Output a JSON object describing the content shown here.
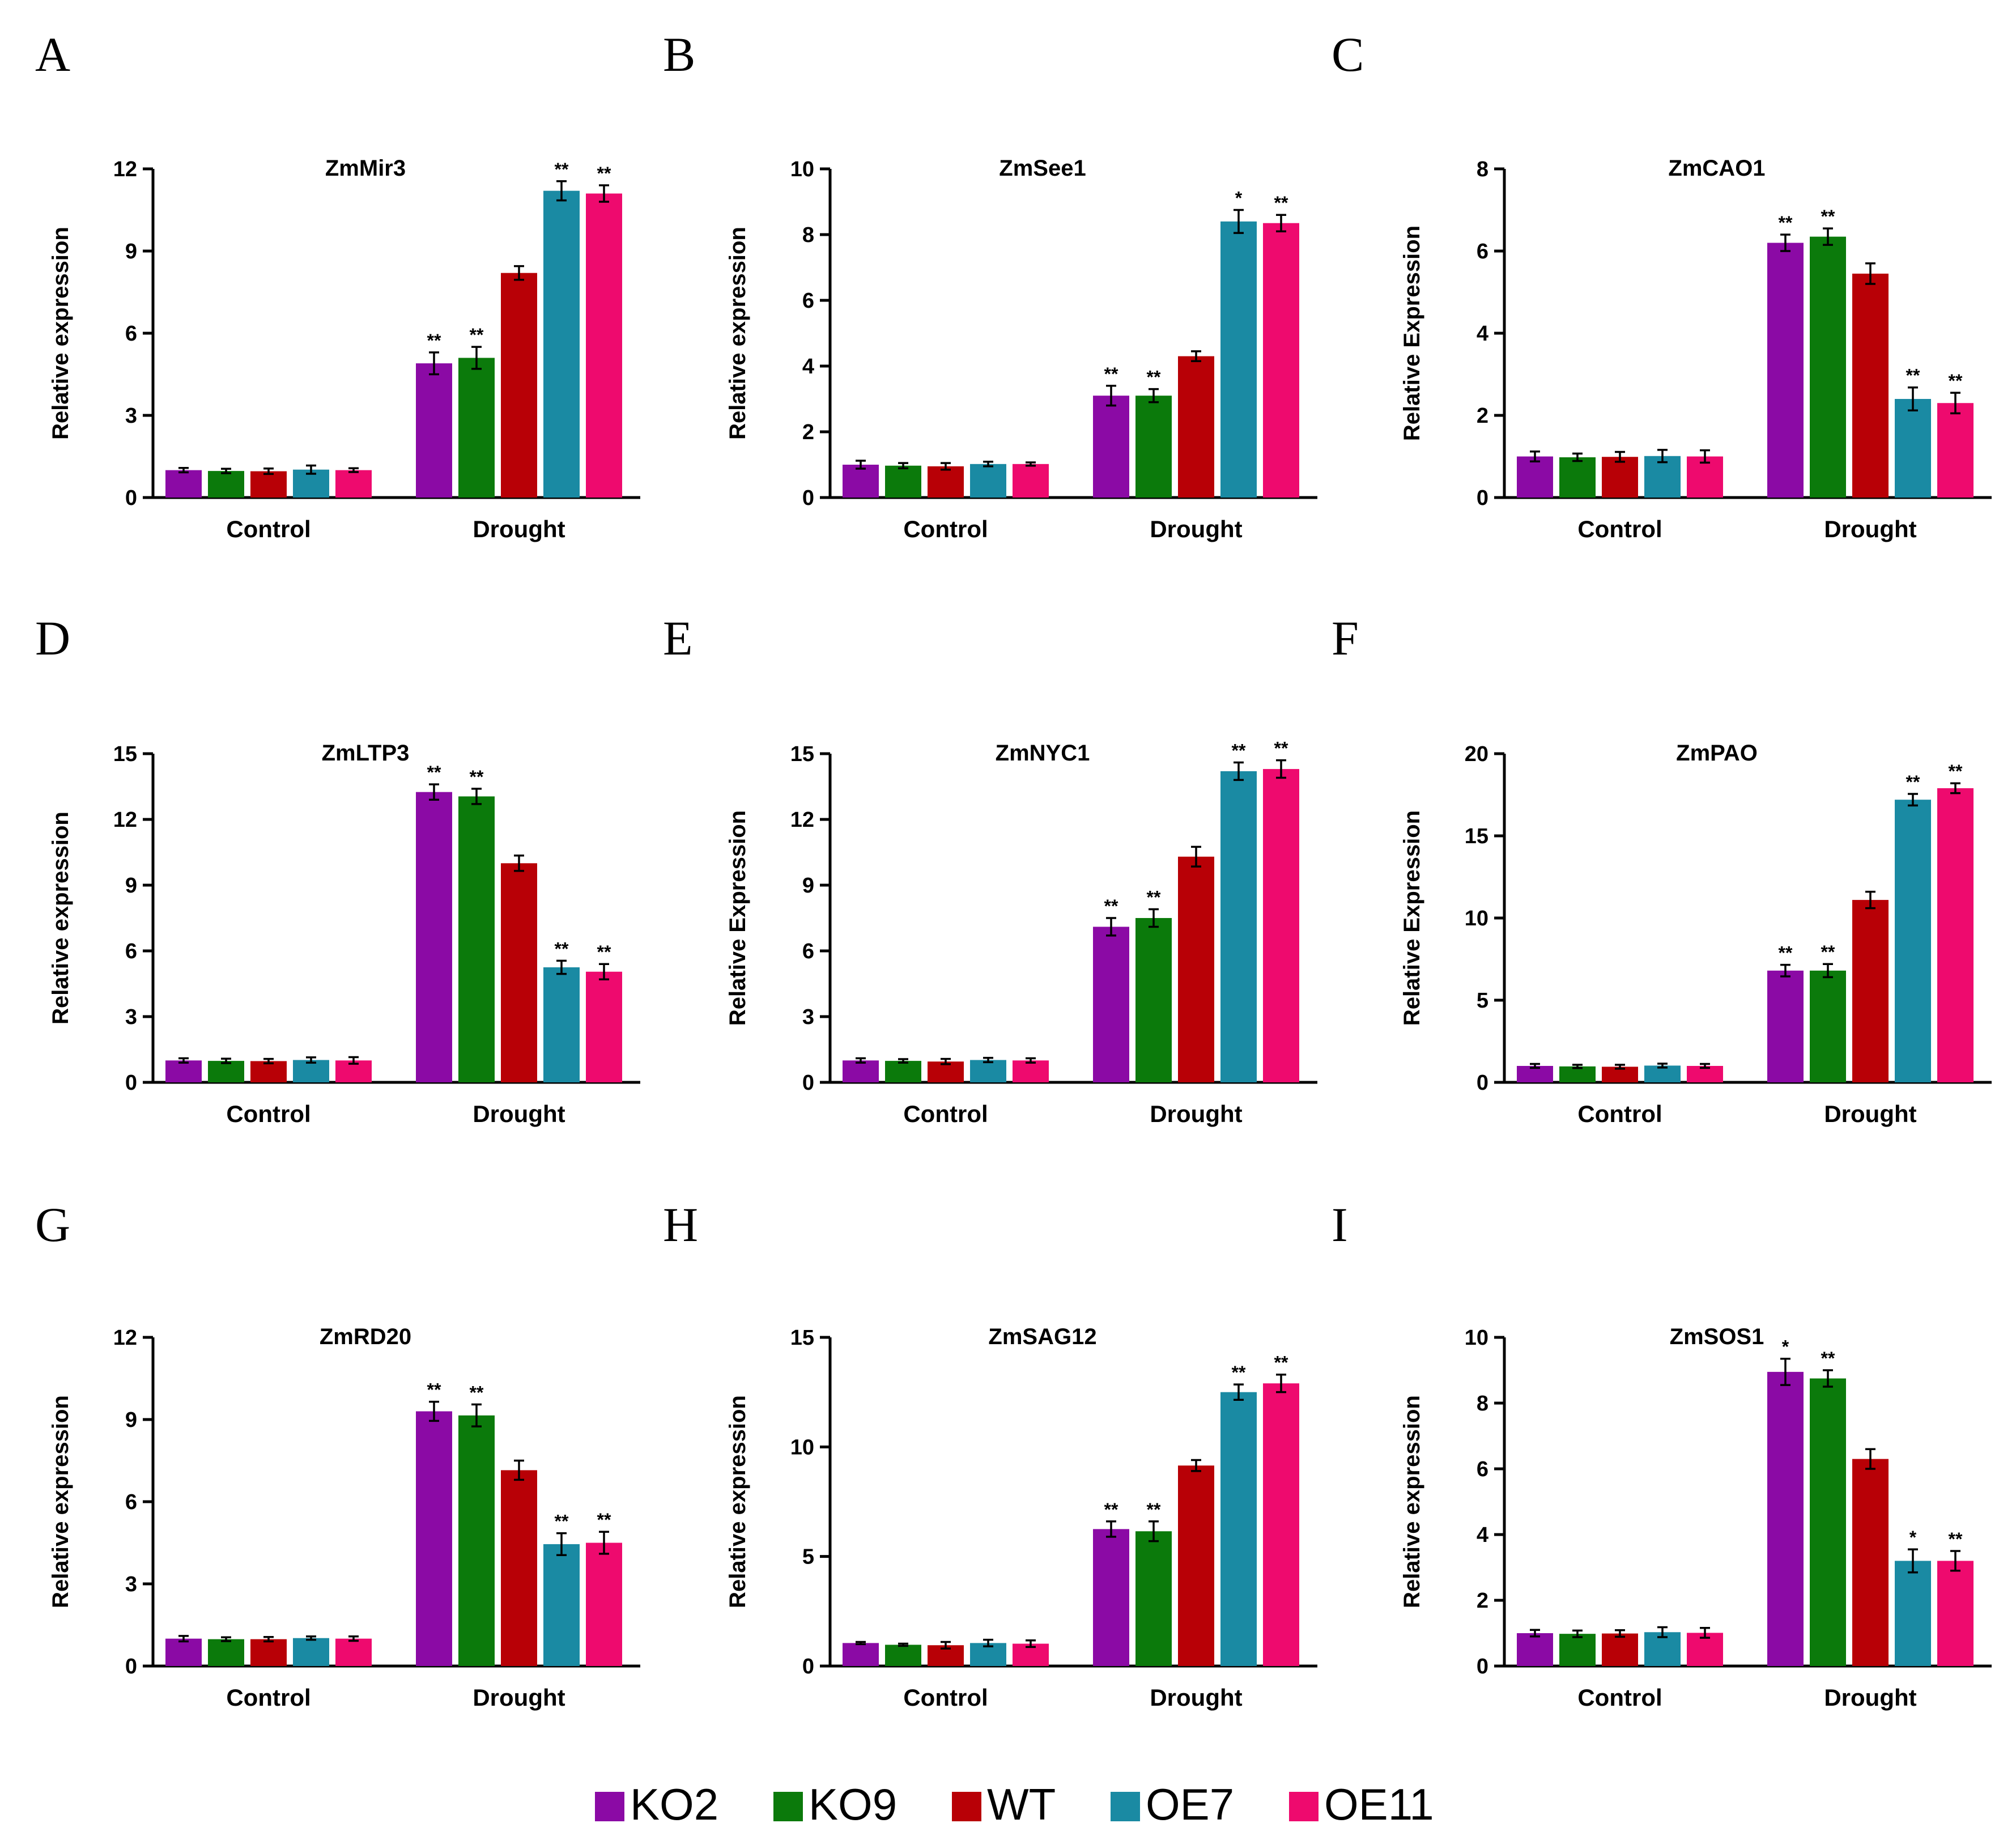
{
  "colors": {
    "KO2": "#8b0aa5",
    "KO9": "#0b7a0b",
    "WT": "#b80006",
    "OE7": "#1a8aa3",
    "OE11": "#ee0a6e"
  },
  "legend": [
    {
      "name": "KO2",
      "color": "#8b0aa5"
    },
    {
      "name": "KO9",
      "color": "#0b7a0b"
    },
    {
      "name": "WT",
      "color": "#b80006"
    },
    {
      "name": "OE7",
      "color": "#1a8aa3"
    },
    {
      "name": "OE11",
      "color": "#ee0a6e"
    }
  ],
  "chart_data": [
    {
      "panel": "A",
      "type": "bar",
      "title": "ZmMir3",
      "ylabel": "Relative expression",
      "categories": [
        "Control",
        "Drought"
      ],
      "ylim": [
        0,
        12
      ],
      "yticks": [
        "0",
        "3",
        "6",
        "9",
        "12"
      ],
      "series": [
        {
          "name": "KO2",
          "values": [
            1.0,
            4.9
          ],
          "errors": [
            0.08,
            0.4
          ],
          "sig": [
            "",
            "**"
          ]
        },
        {
          "name": "KO9",
          "values": [
            0.97,
            5.1
          ],
          "errors": [
            0.08,
            0.4
          ],
          "sig": [
            "",
            "**"
          ]
        },
        {
          "name": "WT",
          "values": [
            0.96,
            8.2
          ],
          "errors": [
            0.1,
            0.25
          ],
          "sig": [
            "",
            ""
          ]
        },
        {
          "name": "OE7",
          "values": [
            1.02,
            11.2
          ],
          "errors": [
            0.15,
            0.35
          ],
          "sig": [
            "",
            "**"
          ]
        },
        {
          "name": "OE11",
          "values": [
            1.0,
            11.1
          ],
          "errors": [
            0.07,
            0.3
          ],
          "sig": [
            "",
            "**"
          ]
        }
      ]
    },
    {
      "panel": "B",
      "type": "bar",
      "title": "ZmSee1",
      "ylabel": "Relative expression",
      "categories": [
        "Control",
        "Drought"
      ],
      "ylim": [
        0,
        10
      ],
      "yticks": [
        "0",
        "2",
        "4",
        "6",
        "8",
        "10"
      ],
      "series": [
        {
          "name": "KO2",
          "values": [
            1.0,
            3.1
          ],
          "errors": [
            0.12,
            0.3
          ],
          "sig": [
            "",
            "**"
          ]
        },
        {
          "name": "KO9",
          "values": [
            0.97,
            3.1
          ],
          "errors": [
            0.08,
            0.2
          ],
          "sig": [
            "",
            "**"
          ]
        },
        {
          "name": "WT",
          "values": [
            0.95,
            4.3
          ],
          "errors": [
            0.1,
            0.15
          ],
          "sig": [
            "",
            ""
          ]
        },
        {
          "name": "OE7",
          "values": [
            1.02,
            8.4
          ],
          "errors": [
            0.07,
            0.35
          ],
          "sig": [
            "",
            "*"
          ]
        },
        {
          "name": "OE11",
          "values": [
            1.02,
            8.35
          ],
          "errors": [
            0.05,
            0.25
          ],
          "sig": [
            "",
            "**"
          ]
        }
      ]
    },
    {
      "panel": "C",
      "type": "bar",
      "title": "ZmCAO1",
      "ylabel": "Relative Expression",
      "categories": [
        "Control",
        "Drought"
      ],
      "ylim": [
        0,
        8
      ],
      "yticks": [
        "0",
        "2",
        "4",
        "6",
        "8"
      ],
      "series": [
        {
          "name": "KO2",
          "values": [
            1.0,
            6.2
          ],
          "errors": [
            0.12,
            0.2
          ],
          "sig": [
            "",
            "**"
          ]
        },
        {
          "name": "KO9",
          "values": [
            0.98,
            6.35
          ],
          "errors": [
            0.09,
            0.2
          ],
          "sig": [
            "",
            "**"
          ]
        },
        {
          "name": "WT",
          "values": [
            0.99,
            5.45
          ],
          "errors": [
            0.12,
            0.25
          ],
          "sig": [
            "",
            ""
          ]
        },
        {
          "name": "OE7",
          "values": [
            1.01,
            2.4
          ],
          "errors": [
            0.15,
            0.28
          ],
          "sig": [
            "",
            "**"
          ]
        },
        {
          "name": "OE11",
          "values": [
            1.0,
            2.3
          ],
          "errors": [
            0.15,
            0.25
          ],
          "sig": [
            "",
            "**"
          ]
        }
      ]
    },
    {
      "panel": "D",
      "type": "bar",
      "title": "ZmLTP3",
      "ylabel": "Relative expression",
      "categories": [
        "Control",
        "Drought"
      ],
      "ylim": [
        0,
        15
      ],
      "yticks": [
        "0",
        "3",
        "6",
        "9",
        "12",
        "15"
      ],
      "series": [
        {
          "name": "KO2",
          "values": [
            1.0,
            13.25
          ],
          "errors": [
            0.1,
            0.35
          ],
          "sig": [
            "",
            "**"
          ]
        },
        {
          "name": "KO9",
          "values": [
            0.98,
            13.05
          ],
          "errors": [
            0.1,
            0.35
          ],
          "sig": [
            "",
            "**"
          ]
        },
        {
          "name": "WT",
          "values": [
            0.97,
            10.0
          ],
          "errors": [
            0.1,
            0.35
          ],
          "sig": [
            "",
            ""
          ]
        },
        {
          "name": "OE7",
          "values": [
            1.02,
            5.25
          ],
          "errors": [
            0.12,
            0.3
          ],
          "sig": [
            "",
            "**"
          ]
        },
        {
          "name": "OE11",
          "values": [
            1.0,
            5.05
          ],
          "errors": [
            0.15,
            0.35
          ],
          "sig": [
            "",
            "**"
          ]
        }
      ]
    },
    {
      "panel": "E",
      "type": "bar",
      "title": "ZmNYC1",
      "ylabel": "Relative Expression",
      "categories": [
        "Control",
        "Drought"
      ],
      "ylim": [
        0,
        15
      ],
      "yticks": [
        "0",
        "3",
        "6",
        "9",
        "12",
        "15"
      ],
      "series": [
        {
          "name": "KO2",
          "values": [
            1.0,
            7.1
          ],
          "errors": [
            0.1,
            0.4
          ],
          "sig": [
            "",
            "**"
          ]
        },
        {
          "name": "KO9",
          "values": [
            0.98,
            7.5
          ],
          "errors": [
            0.08,
            0.4
          ],
          "sig": [
            "",
            "**"
          ]
        },
        {
          "name": "WT",
          "values": [
            0.95,
            10.3
          ],
          "errors": [
            0.12,
            0.45
          ],
          "sig": [
            "",
            ""
          ]
        },
        {
          "name": "OE7",
          "values": [
            1.02,
            14.2
          ],
          "errors": [
            0.1,
            0.4
          ],
          "sig": [
            "",
            "**"
          ]
        },
        {
          "name": "OE11",
          "values": [
            1.0,
            14.3
          ],
          "errors": [
            0.1,
            0.4
          ],
          "sig": [
            "",
            "**"
          ]
        }
      ]
    },
    {
      "panel": "F",
      "type": "bar",
      "title": "ZmPAO",
      "ylabel": "Relative Expression",
      "categories": [
        "Control",
        "Drought"
      ],
      "ylim": [
        0,
        20
      ],
      "yticks": [
        "0",
        "5",
        "10",
        "15",
        "20"
      ],
      "series": [
        {
          "name": "KO2",
          "values": [
            1.0,
            6.8
          ],
          "errors": [
            0.12,
            0.35
          ],
          "sig": [
            "",
            "**"
          ]
        },
        {
          "name": "KO9",
          "values": [
            0.97,
            6.8
          ],
          "errors": [
            0.1,
            0.4
          ],
          "sig": [
            "",
            "**"
          ]
        },
        {
          "name": "WT",
          "values": [
            0.95,
            11.1
          ],
          "errors": [
            0.12,
            0.5
          ],
          "sig": [
            "",
            ""
          ]
        },
        {
          "name": "OE7",
          "values": [
            1.02,
            17.2
          ],
          "errors": [
            0.12,
            0.35
          ],
          "sig": [
            "",
            "**"
          ]
        },
        {
          "name": "OE11",
          "values": [
            1.0,
            17.9
          ],
          "errors": [
            0.12,
            0.3
          ],
          "sig": [
            "",
            "**"
          ]
        }
      ]
    },
    {
      "panel": "G",
      "type": "bar",
      "title": "ZmRD20",
      "ylabel": "Relative expression",
      "categories": [
        "Control",
        "Drought"
      ],
      "ylim": [
        0,
        12
      ],
      "yticks": [
        "0",
        "3",
        "6",
        "9",
        "12"
      ],
      "series": [
        {
          "name": "KO2",
          "values": [
            1.0,
            9.3
          ],
          "errors": [
            0.1,
            0.35
          ],
          "sig": [
            "",
            "**"
          ]
        },
        {
          "name": "KO9",
          "values": [
            0.98,
            9.15
          ],
          "errors": [
            0.07,
            0.4
          ],
          "sig": [
            "",
            "**"
          ]
        },
        {
          "name": "WT",
          "values": [
            0.98,
            7.15
          ],
          "errors": [
            0.08,
            0.35
          ],
          "sig": [
            "",
            ""
          ]
        },
        {
          "name": "OE7",
          "values": [
            1.02,
            4.45
          ],
          "errors": [
            0.06,
            0.4
          ],
          "sig": [
            "",
            "**"
          ]
        },
        {
          "name": "OE11",
          "values": [
            1.0,
            4.5
          ],
          "errors": [
            0.08,
            0.4
          ],
          "sig": [
            "",
            "**"
          ]
        }
      ]
    },
    {
      "panel": "H",
      "type": "bar",
      "title": "ZmSAG12",
      "ylabel": "Relative expression",
      "categories": [
        "Control",
        "Drought"
      ],
      "ylim": [
        0,
        15
      ],
      "yticks": [
        "0",
        "5",
        "10",
        "15"
      ],
      "series": [
        {
          "name": "KO2",
          "values": [
            1.05,
            6.25
          ],
          "errors": [
            0.05,
            0.35
          ],
          "sig": [
            "",
            "**"
          ]
        },
        {
          "name": "KO9",
          "values": [
            0.97,
            6.15
          ],
          "errors": [
            0.05,
            0.45
          ],
          "sig": [
            "",
            "**"
          ]
        },
        {
          "name": "WT",
          "values": [
            0.95,
            9.15
          ],
          "errors": [
            0.15,
            0.25
          ],
          "sig": [
            "",
            ""
          ]
        },
        {
          "name": "OE7",
          "values": [
            1.05,
            12.5
          ],
          "errors": [
            0.15,
            0.35
          ],
          "sig": [
            "",
            "**"
          ]
        },
        {
          "name": "OE11",
          "values": [
            1.02,
            12.9
          ],
          "errors": [
            0.15,
            0.4
          ],
          "sig": [
            "",
            "**"
          ]
        }
      ]
    },
    {
      "panel": "I",
      "type": "bar",
      "title": "ZmSOS1",
      "ylabel": "Relative expression",
      "categories": [
        "Control",
        "Drought"
      ],
      "ylim": [
        0,
        10
      ],
      "yticks": [
        "0",
        "2",
        "4",
        "6",
        "8",
        "10"
      ],
      "series": [
        {
          "name": "KO2",
          "values": [
            1.0,
            8.95
          ],
          "errors": [
            0.1,
            0.4
          ],
          "sig": [
            "",
            "*"
          ]
        },
        {
          "name": "KO9",
          "values": [
            0.98,
            8.75
          ],
          "errors": [
            0.1,
            0.25
          ],
          "sig": [
            "",
            "**"
          ]
        },
        {
          "name": "WT",
          "values": [
            0.99,
            6.3
          ],
          "errors": [
            0.1,
            0.3
          ],
          "sig": [
            "",
            ""
          ]
        },
        {
          "name": "OE7",
          "values": [
            1.03,
            3.2
          ],
          "errors": [
            0.15,
            0.35
          ],
          "sig": [
            "",
            "*"
          ]
        },
        {
          "name": "OE11",
          "values": [
            1.01,
            3.2
          ],
          "errors": [
            0.15,
            0.3
          ],
          "sig": [
            "",
            "**"
          ]
        }
      ]
    }
  ]
}
